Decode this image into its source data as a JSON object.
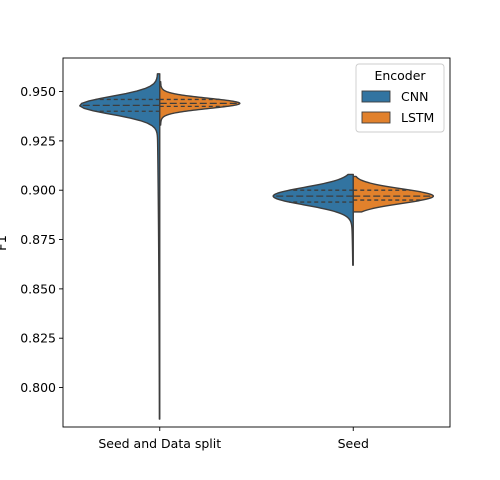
{
  "chart_data": {
    "type": "violin",
    "categories": [
      "Seed and Data split",
      "Seed"
    ],
    "ylabel": "F1",
    "ylim": [
      0.78,
      0.967
    ],
    "yticks": [
      0.8,
      0.825,
      0.85,
      0.875,
      0.9,
      0.925,
      0.95
    ],
    "ytick_labels": [
      "0.800",
      "0.825",
      "0.850",
      "0.875",
      "0.900",
      "0.925",
      "0.950"
    ],
    "legend": {
      "title": "Encoder",
      "placement": "top-right"
    },
    "split": true,
    "inner": "quartile",
    "series": [
      {
        "name": "CNN",
        "color": "#3274a1",
        "groups": [
          {
            "min": 0.784,
            "max": 0.959,
            "q1": 0.94,
            "median": 0.943,
            "q3": 0.946
          },
          {
            "min": 0.862,
            "max": 0.908,
            "q1": 0.894,
            "median": 0.897,
            "q3": 0.9
          }
        ]
      },
      {
        "name": "LSTM",
        "color": "#e1812c",
        "groups": [
          {
            "min": 0.933,
            "max": 0.955,
            "q1": 0.9425,
            "median": 0.944,
            "q3": 0.946
          },
          {
            "min": 0.889,
            "max": 0.907,
            "q1": 0.895,
            "median": 0.897,
            "q3": 0.9
          }
        ]
      }
    ]
  }
}
